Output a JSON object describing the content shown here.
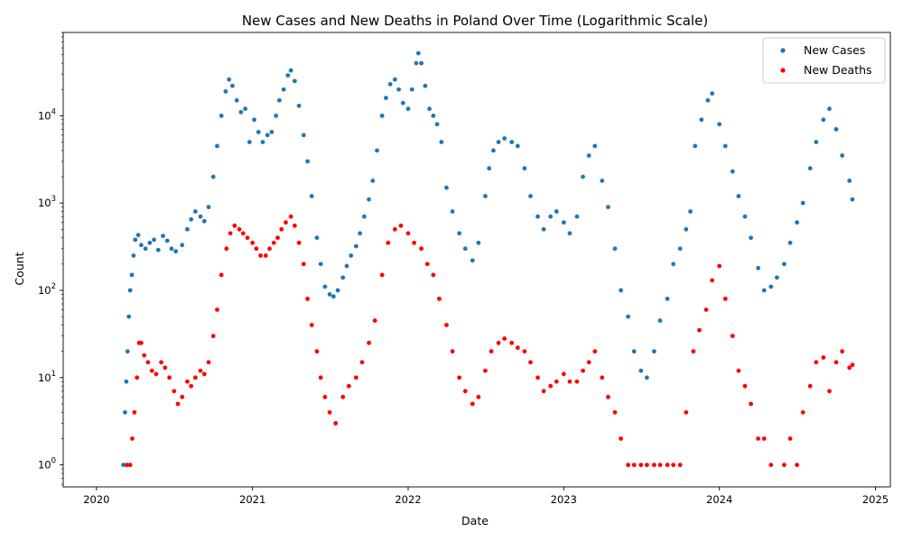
{
  "chart_data": {
    "type": "scatter",
    "title": "New Cases and New Deaths in Poland Over Time (Logarithmic Scale)",
    "xlabel": "Date",
    "ylabel": "Count",
    "xscale": "date",
    "yscale": "log",
    "xlim": [
      "2019-10-15",
      "2025-02-05"
    ],
    "ylim": [
      0.56,
      90000
    ],
    "x_ticks": [
      "2020-01-01",
      "2021-01-01",
      "2022-01-01",
      "2023-01-01",
      "2024-01-01",
      "2025-01-01"
    ],
    "x_tick_labels": [
      "2020",
      "2021",
      "2022",
      "2023",
      "2024",
      "2025"
    ],
    "y_ticks": [
      1,
      10,
      100,
      1000,
      10000
    ],
    "y_tick_labels": [
      "10^0",
      "10^1",
      "10^2",
      "10^3",
      "10^4"
    ],
    "legend": {
      "position": "top-right"
    },
    "grid": false,
    "series": [
      {
        "name": "New Cases",
        "color": "#1f77b4",
        "points": [
          [
            "2020-03-04",
            1
          ],
          [
            "2020-03-08",
            4
          ],
          [
            "2020-03-11",
            9
          ],
          [
            "2020-03-14",
            20
          ],
          [
            "2020-03-17",
            50
          ],
          [
            "2020-03-20",
            100
          ],
          [
            "2020-03-24",
            150
          ],
          [
            "2020-03-28",
            250
          ],
          [
            "2020-04-01",
            380
          ],
          [
            "2020-04-08",
            430
          ],
          [
            "2020-04-15",
            330
          ],
          [
            "2020-04-25",
            300
          ],
          [
            "2020-05-05",
            350
          ],
          [
            "2020-05-15",
            380
          ],
          [
            "2020-05-25",
            290
          ],
          [
            "2020-06-05",
            420
          ],
          [
            "2020-06-15",
            370
          ],
          [
            "2020-06-25",
            300
          ],
          [
            "2020-07-05",
            280
          ],
          [
            "2020-07-20",
            330
          ],
          [
            "2020-08-01",
            500
          ],
          [
            "2020-08-10",
            650
          ],
          [
            "2020-08-20",
            800
          ],
          [
            "2020-09-01",
            700
          ],
          [
            "2020-09-10",
            620
          ],
          [
            "2020-09-20",
            900
          ],
          [
            "2020-10-01",
            2000
          ],
          [
            "2020-10-10",
            4500
          ],
          [
            "2020-10-20",
            10000
          ],
          [
            "2020-10-30",
            19000
          ],
          [
            "2020-11-07",
            26000
          ],
          [
            "2020-11-15",
            22000
          ],
          [
            "2020-11-25",
            15000
          ],
          [
            "2020-12-05",
            11000
          ],
          [
            "2020-12-15",
            12000
          ],
          [
            "2020-12-25",
            5000
          ],
          [
            "2021-01-05",
            9000
          ],
          [
            "2021-01-15",
            6500
          ],
          [
            "2021-01-25",
            5000
          ],
          [
            "2021-02-05",
            6000
          ],
          [
            "2021-02-15",
            6500
          ],
          [
            "2021-02-25",
            10000
          ],
          [
            "2021-03-05",
            15000
          ],
          [
            "2021-03-15",
            20000
          ],
          [
            "2021-03-25",
            29000
          ],
          [
            "2021-04-01",
            33000
          ],
          [
            "2021-04-10",
            25000
          ],
          [
            "2021-04-20",
            13000
          ],
          [
            "2021-05-01",
            6000
          ],
          [
            "2021-05-10",
            3000
          ],
          [
            "2021-05-20",
            1200
          ],
          [
            "2021-06-01",
            400
          ],
          [
            "2021-06-10",
            200
          ],
          [
            "2021-06-20",
            110
          ],
          [
            "2021-07-01",
            90
          ],
          [
            "2021-07-10",
            85
          ],
          [
            "2021-07-20",
            100
          ],
          [
            "2021-08-01",
            140
          ],
          [
            "2021-08-10",
            190
          ],
          [
            "2021-08-20",
            250
          ],
          [
            "2021-09-01",
            320
          ],
          [
            "2021-09-10",
            450
          ],
          [
            "2021-09-20",
            700
          ],
          [
            "2021-10-01",
            1100
          ],
          [
            "2021-10-10",
            1800
          ],
          [
            "2021-10-20",
            4000
          ],
          [
            "2021-11-01",
            10000
          ],
          [
            "2021-11-10",
            16000
          ],
          [
            "2021-11-20",
            23000
          ],
          [
            "2021-12-01",
            26000
          ],
          [
            "2021-12-10",
            20000
          ],
          [
            "2021-12-20",
            14000
          ],
          [
            "2022-01-01",
            12000
          ],
          [
            "2022-01-10",
            20000
          ],
          [
            "2022-01-20",
            40000
          ],
          [
            "2022-01-25",
            52000
          ],
          [
            "2022-02-01",
            40000
          ],
          [
            "2022-02-10",
            22000
          ],
          [
            "2022-02-20",
            12000
          ],
          [
            "2022-03-01",
            10000
          ],
          [
            "2022-03-10",
            8000
          ],
          [
            "2022-03-20",
            5000
          ],
          [
            "2022-04-01",
            1500
          ],
          [
            "2022-04-15",
            800
          ],
          [
            "2022-05-01",
            450
          ],
          [
            "2022-05-15",
            300
          ],
          [
            "2022-06-01",
            220
          ],
          [
            "2022-06-15",
            350
          ],
          [
            "2022-07-01",
            1200
          ],
          [
            "2022-07-10",
            2500
          ],
          [
            "2022-07-20",
            4000
          ],
          [
            "2022-08-01",
            5000
          ],
          [
            "2022-08-15",
            5500
          ],
          [
            "2022-09-01",
            5000
          ],
          [
            "2022-09-15",
            4500
          ],
          [
            "2022-10-01",
            2500
          ],
          [
            "2022-10-15",
            1200
          ],
          [
            "2022-11-01",
            700
          ],
          [
            "2022-11-15",
            500
          ],
          [
            "2022-12-01",
            700
          ],
          [
            "2022-12-15",
            800
          ],
          [
            "2023-01-01",
            600
          ],
          [
            "2023-01-15",
            450
          ],
          [
            "2023-02-01",
            700
          ],
          [
            "2023-02-15",
            2000
          ],
          [
            "2023-03-01",
            3500
          ],
          [
            "2023-03-15",
            4500
          ],
          [
            "2023-04-01",
            1800
          ],
          [
            "2023-04-15",
            900
          ],
          [
            "2023-05-01",
            300
          ],
          [
            "2023-05-15",
            100
          ],
          [
            "2023-06-01",
            50
          ],
          [
            "2023-06-15",
            20
          ],
          [
            "2023-07-01",
            12
          ],
          [
            "2023-07-15",
            10
          ],
          [
            "2023-08-01",
            20
          ],
          [
            "2023-08-15",
            45
          ],
          [
            "2023-09-01",
            80
          ],
          [
            "2023-09-15",
            200
          ],
          [
            "2023-10-01",
            300
          ],
          [
            "2023-10-15",
            500
          ],
          [
            "2023-10-25",
            800
          ],
          [
            "2023-11-05",
            4500
          ],
          [
            "2023-11-20",
            9000
          ],
          [
            "2023-12-05",
            15000
          ],
          [
            "2023-12-15",
            18000
          ],
          [
            "2024-01-01",
            8000
          ],
          [
            "2024-01-15",
            4500
          ],
          [
            "2024-02-01",
            2300
          ],
          [
            "2024-02-15",
            1200
          ],
          [
            "2024-03-01",
            700
          ],
          [
            "2024-03-15",
            400
          ],
          [
            "2024-04-01",
            180
          ],
          [
            "2024-04-15",
            100
          ],
          [
            "2024-05-01",
            110
          ],
          [
            "2024-05-15",
            140
          ],
          [
            "2024-06-01",
            200
          ],
          [
            "2024-06-15",
            350
          ],
          [
            "2024-07-01",
            600
          ],
          [
            "2024-07-15",
            1000
          ],
          [
            "2024-08-01",
            2500
          ],
          [
            "2024-08-15",
            5000
          ],
          [
            "2024-09-01",
            9000
          ],
          [
            "2024-09-15",
            12000
          ],
          [
            "2024-10-01",
            7000
          ],
          [
            "2024-10-15",
            3500
          ],
          [
            "2024-11-01",
            1800
          ],
          [
            "2024-11-08",
            1100
          ]
        ]
      },
      {
        "name": "New Deaths",
        "color": "#ff0000",
        "points": [
          [
            "2020-03-12",
            1
          ],
          [
            "2020-03-20",
            1
          ],
          [
            "2020-03-25",
            2
          ],
          [
            "2020-03-30",
            4
          ],
          [
            "2020-04-05",
            10
          ],
          [
            "2020-04-10",
            25
          ],
          [
            "2020-04-15",
            25
          ],
          [
            "2020-04-22",
            18
          ],
          [
            "2020-05-01",
            15
          ],
          [
            "2020-05-10",
            12
          ],
          [
            "2020-05-20",
            11
          ],
          [
            "2020-06-01",
            15
          ],
          [
            "2020-06-10",
            13
          ],
          [
            "2020-06-20",
            10
          ],
          [
            "2020-07-01",
            7
          ],
          [
            "2020-07-10",
            5
          ],
          [
            "2020-07-20",
            6
          ],
          [
            "2020-08-01",
            9
          ],
          [
            "2020-08-10",
            8
          ],
          [
            "2020-08-20",
            10
          ],
          [
            "2020-09-01",
            12
          ],
          [
            "2020-09-10",
            11
          ],
          [
            "2020-09-20",
            15
          ],
          [
            "2020-10-01",
            30
          ],
          [
            "2020-10-10",
            60
          ],
          [
            "2020-10-20",
            150
          ],
          [
            "2020-11-01",
            300
          ],
          [
            "2020-11-10",
            450
          ],
          [
            "2020-11-20",
            550
          ],
          [
            "2020-12-01",
            500
          ],
          [
            "2020-12-10",
            450
          ],
          [
            "2020-12-20",
            400
          ],
          [
            "2021-01-01",
            350
          ],
          [
            "2021-01-10",
            300
          ],
          [
            "2021-01-20",
            250
          ],
          [
            "2021-02-01",
            250
          ],
          [
            "2021-02-10",
            300
          ],
          [
            "2021-02-20",
            350
          ],
          [
            "2021-03-01",
            400
          ],
          [
            "2021-03-10",
            500
          ],
          [
            "2021-03-20",
            600
          ],
          [
            "2021-04-01",
            700
          ],
          [
            "2021-04-10",
            550
          ],
          [
            "2021-04-20",
            350
          ],
          [
            "2021-05-01",
            200
          ],
          [
            "2021-05-10",
            80
          ],
          [
            "2021-05-20",
            40
          ],
          [
            "2021-06-01",
            20
          ],
          [
            "2021-06-10",
            10
          ],
          [
            "2021-06-20",
            6
          ],
          [
            "2021-07-01",
            4
          ],
          [
            "2021-07-15",
            3
          ],
          [
            "2021-08-01",
            6
          ],
          [
            "2021-08-15",
            8
          ],
          [
            "2021-09-01",
            10
          ],
          [
            "2021-09-15",
            15
          ],
          [
            "2021-10-01",
            25
          ],
          [
            "2021-10-15",
            45
          ],
          [
            "2021-11-01",
            150
          ],
          [
            "2021-11-15",
            350
          ],
          [
            "2021-12-01",
            500
          ],
          [
            "2021-12-15",
            550
          ],
          [
            "2022-01-01",
            450
          ],
          [
            "2022-01-15",
            350
          ],
          [
            "2022-02-01",
            300
          ],
          [
            "2022-02-15",
            200
          ],
          [
            "2022-03-01",
            150
          ],
          [
            "2022-03-15",
            80
          ],
          [
            "2022-04-01",
            40
          ],
          [
            "2022-04-15",
            20
          ],
          [
            "2022-05-01",
            10
          ],
          [
            "2022-05-15",
            7
          ],
          [
            "2022-06-01",
            5
          ],
          [
            "2022-06-15",
            6
          ],
          [
            "2022-07-01",
            12
          ],
          [
            "2022-07-15",
            20
          ],
          [
            "2022-08-01",
            25
          ],
          [
            "2022-08-15",
            28
          ],
          [
            "2022-09-01",
            25
          ],
          [
            "2022-09-15",
            22
          ],
          [
            "2022-10-01",
            20
          ],
          [
            "2022-10-15",
            15
          ],
          [
            "2022-11-01",
            10
          ],
          [
            "2022-11-15",
            7
          ],
          [
            "2022-12-01",
            8
          ],
          [
            "2022-12-15",
            9
          ],
          [
            "2023-01-01",
            11
          ],
          [
            "2023-01-15",
            9
          ],
          [
            "2023-02-01",
            9
          ],
          [
            "2023-02-15",
            12
          ],
          [
            "2023-03-01",
            15
          ],
          [
            "2023-03-15",
            20
          ],
          [
            "2023-04-01",
            10
          ],
          [
            "2023-04-15",
            6
          ],
          [
            "2023-05-01",
            4
          ],
          [
            "2023-05-15",
            2
          ],
          [
            "2023-06-01",
            1
          ],
          [
            "2023-06-15",
            1
          ],
          [
            "2023-07-01",
            1
          ],
          [
            "2023-07-15",
            1
          ],
          [
            "2023-08-01",
            1
          ],
          [
            "2023-08-15",
            1
          ],
          [
            "2023-09-01",
            1
          ],
          [
            "2023-09-15",
            1
          ],
          [
            "2023-10-01",
            1
          ],
          [
            "2023-10-15",
            4
          ],
          [
            "2023-11-01",
            20
          ],
          [
            "2023-11-15",
            35
          ],
          [
            "2023-12-01",
            60
          ],
          [
            "2023-12-15",
            130
          ],
          [
            "2024-01-01",
            190
          ],
          [
            "2024-01-15",
            80
          ],
          [
            "2024-02-01",
            30
          ],
          [
            "2024-02-15",
            12
          ],
          [
            "2024-03-01",
            8
          ],
          [
            "2024-03-15",
            5
          ],
          [
            "2024-04-01",
            2
          ],
          [
            "2024-04-15",
            2
          ],
          [
            "2024-05-01",
            1
          ],
          [
            "2024-06-01",
            1
          ],
          [
            "2024-06-15",
            2
          ],
          [
            "2024-07-01",
            1
          ],
          [
            "2024-07-15",
            4
          ],
          [
            "2024-08-01",
            8
          ],
          [
            "2024-08-15",
            15
          ],
          [
            "2024-09-01",
            17
          ],
          [
            "2024-09-15",
            7
          ],
          [
            "2024-10-01",
            15
          ],
          [
            "2024-10-15",
            20
          ],
          [
            "2024-11-01",
            13
          ],
          [
            "2024-11-08",
            14
          ]
        ]
      }
    ]
  }
}
